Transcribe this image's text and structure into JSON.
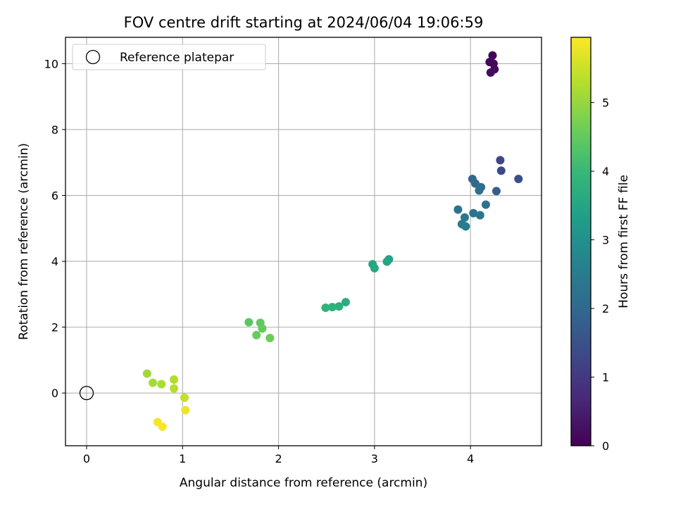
{
  "chart_data": {
    "type": "scatter",
    "title": "FOV centre drift starting at 2024/06/04 19:06:59",
    "xlabel": "Angular distance from reference (arcmin)",
    "ylabel": "Rotation from reference (arcmin)",
    "xlim": [
      -0.22,
      4.74
    ],
    "ylim": [
      -1.6,
      10.8
    ],
    "xticks": [
      0,
      1,
      2,
      3,
      4
    ],
    "yticks": [
      0,
      2,
      4,
      6,
      8,
      10
    ],
    "grid": true,
    "legend": {
      "position": "top-left",
      "entries": [
        "Reference platepar"
      ]
    },
    "reference_point": {
      "x": 0,
      "y": 0
    },
    "colorbar": {
      "label": "Hours from first FF file",
      "min": 0,
      "max": 5.95,
      "ticks": [
        0,
        1,
        2,
        3,
        4,
        5
      ],
      "colormap": [
        "#440154",
        "#482878",
        "#3e4989",
        "#31688e",
        "#26828e",
        "#1f9e89",
        "#35b779",
        "#6ece58",
        "#b5de2b",
        "#fde725"
      ]
    },
    "points": [
      {
        "x": 4.23,
        "y": 10.25,
        "hours": 0.05
      },
      {
        "x": 4.2,
        "y": 10.05,
        "hours": 0.1
      },
      {
        "x": 4.24,
        "y": 10.0,
        "hours": 0.12
      },
      {
        "x": 4.25,
        "y": 9.83,
        "hours": 0.15
      },
      {
        "x": 4.21,
        "y": 9.73,
        "hours": 0.18
      },
      {
        "x": 4.31,
        "y": 7.07,
        "hours": 1.25
      },
      {
        "x": 4.32,
        "y": 6.75,
        "hours": 1.35
      },
      {
        "x": 4.5,
        "y": 6.5,
        "hours": 1.45
      },
      {
        "x": 4.27,
        "y": 6.13,
        "hours": 1.75
      },
      {
        "x": 4.02,
        "y": 6.5,
        "hours": 2.0
      },
      {
        "x": 4.05,
        "y": 6.36,
        "hours": 2.05
      },
      {
        "x": 4.11,
        "y": 6.25,
        "hours": 2.1
      },
      {
        "x": 4.09,
        "y": 6.15,
        "hours": 2.15
      },
      {
        "x": 4.16,
        "y": 5.72,
        "hours": 2.2
      },
      {
        "x": 3.87,
        "y": 5.57,
        "hours": 2.25
      },
      {
        "x": 4.03,
        "y": 5.46,
        "hours": 2.3
      },
      {
        "x": 4.1,
        "y": 5.4,
        "hours": 2.35
      },
      {
        "x": 3.94,
        "y": 5.33,
        "hours": 2.4
      },
      {
        "x": 3.91,
        "y": 5.13,
        "hours": 2.45
      },
      {
        "x": 3.95,
        "y": 5.06,
        "hours": 2.5
      },
      {
        "x": 3.15,
        "y": 4.06,
        "hours": 3.4
      },
      {
        "x": 3.13,
        "y": 3.99,
        "hours": 3.45
      },
      {
        "x": 2.98,
        "y": 3.91,
        "hours": 3.5
      },
      {
        "x": 3.0,
        "y": 3.79,
        "hours": 3.55
      },
      {
        "x": 2.7,
        "y": 2.76,
        "hours": 3.7
      },
      {
        "x": 2.63,
        "y": 2.63,
        "hours": 3.75
      },
      {
        "x": 2.56,
        "y": 2.61,
        "hours": 3.8
      },
      {
        "x": 2.49,
        "y": 2.59,
        "hours": 3.85
      },
      {
        "x": 1.69,
        "y": 2.15,
        "hours": 4.4
      },
      {
        "x": 1.81,
        "y": 2.13,
        "hours": 4.45
      },
      {
        "x": 1.83,
        "y": 1.96,
        "hours": 4.5
      },
      {
        "x": 1.77,
        "y": 1.76,
        "hours": 4.55
      },
      {
        "x": 1.91,
        "y": 1.67,
        "hours": 4.6
      },
      {
        "x": 0.63,
        "y": 0.59,
        "hours": 5.1
      },
      {
        "x": 0.69,
        "y": 0.31,
        "hours": 5.15
      },
      {
        "x": 0.78,
        "y": 0.27,
        "hours": 5.2
      },
      {
        "x": 0.91,
        "y": 0.41,
        "hours": 5.25
      },
      {
        "x": 0.91,
        "y": 0.14,
        "hours": 5.3
      },
      {
        "x": 1.02,
        "y": -0.14,
        "hours": 5.4
      },
      {
        "x": 1.03,
        "y": -0.52,
        "hours": 5.8
      },
      {
        "x": 0.74,
        "y": -0.88,
        "hours": 5.85
      },
      {
        "x": 0.79,
        "y": -1.02,
        "hours": 5.9
      }
    ]
  }
}
